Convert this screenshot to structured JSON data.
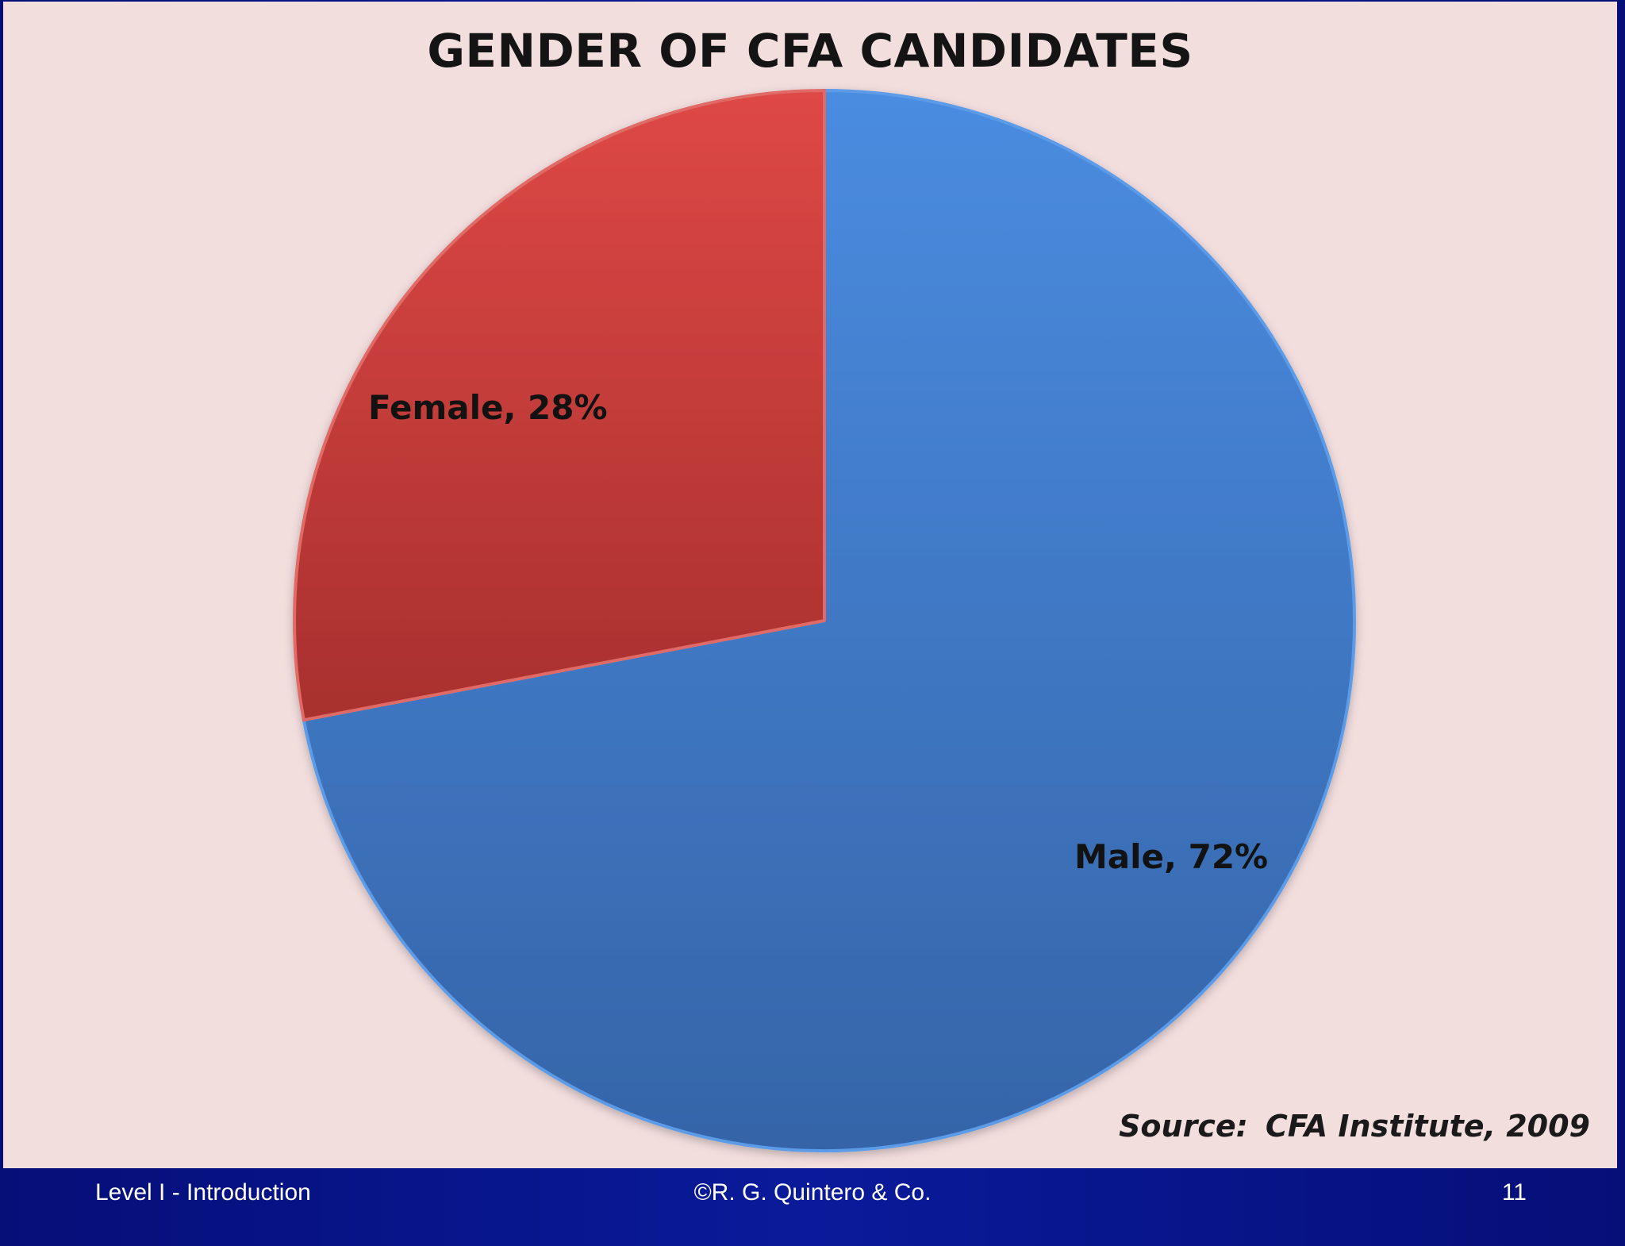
{
  "slide": {
    "footer_left": "Level I - Introduction",
    "footer_center": "©R. G. Quintero & Co.",
    "footer_right": "11"
  },
  "chart_data": {
    "type": "pie",
    "title": "GENDER OF CFA CANDIDATES",
    "slices": [
      {
        "label": "Male",
        "value": 72,
        "display": "Male, 72%",
        "color": "#3d7fd1"
      },
      {
        "label": "Female",
        "value": 28,
        "display": "Female, 28%",
        "color": "#c23a36"
      }
    ],
    "start_angle": "12 o'clock, clockwise",
    "source_label": "Source:",
    "source_text": "CFA Institute, 2009",
    "legend": "none"
  }
}
